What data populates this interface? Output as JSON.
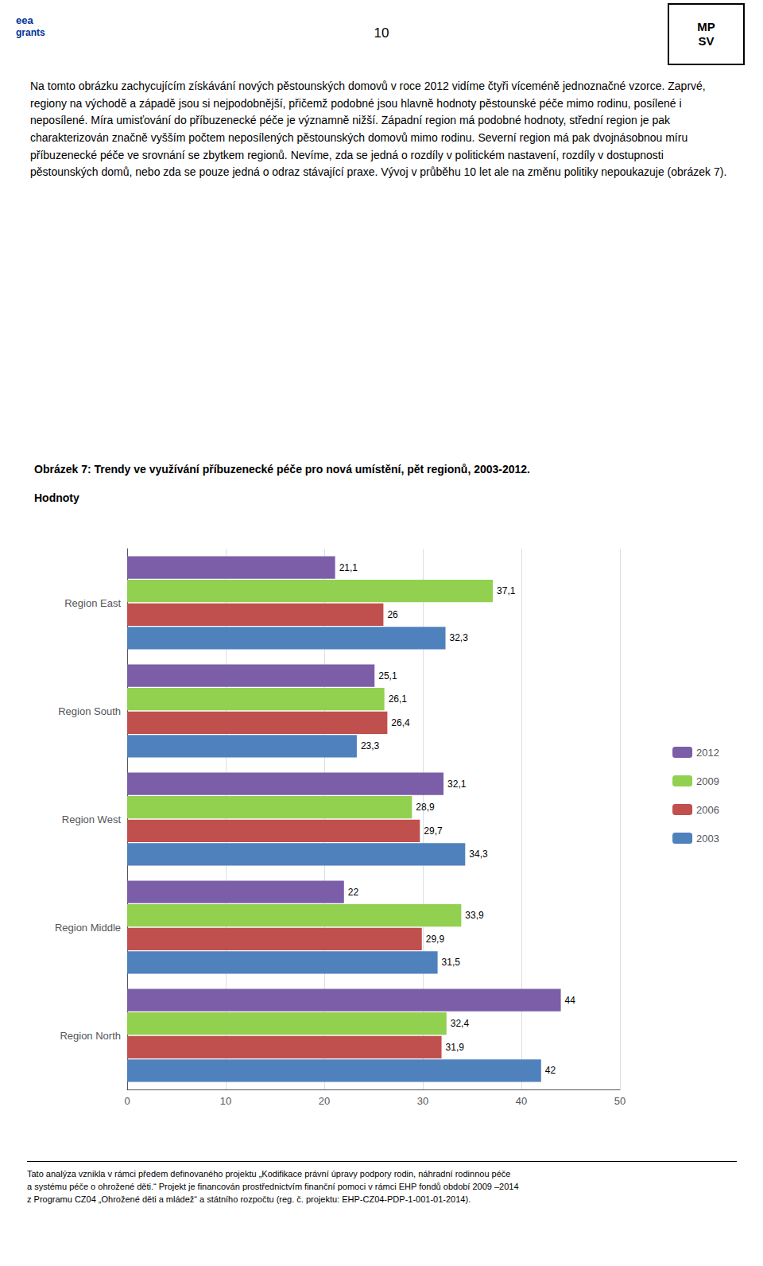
{
  "chart_data": {
    "type": "bar",
    "orientation": "horizontal",
    "title": "Obrázek 7: Trendy ve využívání příbuzenecké péče pro nová umístění, pět regionů, 2003-2012.",
    "subtitle": "Hodnoty",
    "annotations": [
      "10",
      "eea",
      "grants",
      "MP\nSV",
      "Na tomto obrázku zachycujícím získávání nových pěstounských domovů v roce 2012 vidíme čtyři víceméně jednoznačné vzorce. Zaprvé, regiony na východě a západě jsou si nejpodobnější, přičemž podobné jsou hlavně hodnoty pěstounské péče mimo rodinu, posílené i neposílené. Míra umisťování do příbuzenecké péče je významně nižší. Západní region má podobné hodnoty, střední region je pak charakterizován značně vyšším počtem neposílených pěstounských domovů mimo rodinu. Severní region má pak dvojnásobnou míru příbuzenecké péče ve srovnání se zbytkem regionů. Nevíme, zda se jedná o rozdíly v politickém nastavení, rozdíly v dostupnosti pěstounských domů, nebo zda se pouze jedná o odraz stávající praxe. Vývoj v průběhu 10 let ale na změnu politiky nepoukazuje (obrázek 7).",
      "Tato analýza vznikla v rámci předem definovaného projektu „Kodifikace právní úpravy podpory rodin, náhradní rodinnou péče\na  systému péče o ohrožené děti.“ Projekt je financován prostřednictvím finanční pomoci v rámci EHP fondů období 2009 –2014\nz Programu CZ04 „Ohrožené děti a mládež“ a státního rozpočtu (reg. č. projektu: EHP-CZ04-PDP-1-001-01-2014)."
    ],
    "categories": [
      "Region East",
      "Region South",
      "Region West",
      "Region Middle",
      "Region North"
    ],
    "series": [
      {
        "name": "2012",
        "color": "#7B5EA7",
        "values": [
          21.1,
          25.1,
          32.1,
          22.0,
          44.0
        ],
        "value_labels": [
          "21,1",
          "25,1",
          "32,1",
          "22",
          "44"
        ]
      },
      {
        "name": "2009",
        "color": "#92D050",
        "values": [
          37.1,
          26.1,
          28.9,
          33.9,
          32.4
        ],
        "value_labels": [
          "37,1",
          "26,1",
          "28,9",
          "33,9",
          "32,4"
        ]
      },
      {
        "name": "2006",
        "color": "#C0504D",
        "values": [
          26.0,
          26.4,
          29.7,
          29.9,
          31.9
        ],
        "value_labels": [
          "26",
          "26,4",
          "29,7",
          "29,9",
          "31,9"
        ]
      },
      {
        "name": "2003",
        "color": "#4F81BD",
        "values": [
          32.3,
          23.3,
          34.3,
          31.5,
          42.0
        ],
        "value_labels": [
          "32,3",
          "23,3",
          "34,3",
          "31,5",
          "42"
        ]
      }
    ],
    "xlim": [
      0,
      50
    ],
    "xticks": [
      0,
      10,
      20,
      30,
      40,
      50
    ],
    "grid": true,
    "legend": "right",
    "data_labels": true
  }
}
